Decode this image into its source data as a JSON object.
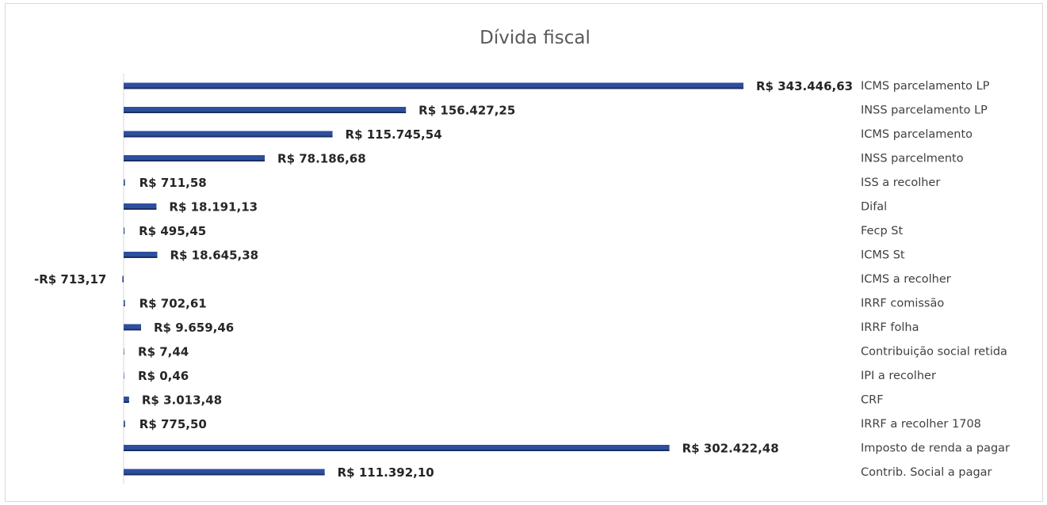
{
  "chart_data": {
    "type": "bar",
    "orientation": "horizontal",
    "title": "Dívida fiscal",
    "xlabel": "",
    "ylabel": "",
    "grid": false,
    "legend": "none",
    "bar_color": "#2e4f9e",
    "bar_shadow_color": "#1b2f63",
    "categories": [
      "ICMS parcelamento LP",
      "INSS parcelamento LP",
      "ICMS parcelamento",
      "INSS parcelmento",
      "ISS a recolher",
      "Difal",
      "Fecp St",
      "ICMS St",
      "ICMS a recolher",
      "IRRF comissão",
      "IRRF folha",
      "Contribuição social retida",
      "IPI a recolher",
      "CRF",
      "IRRF a recolher 1708",
      "Imposto de renda a pagar",
      "Contrib. Social a pagar"
    ],
    "values": [
      343446.63,
      156427.25,
      115745.54,
      78186.68,
      711.58,
      18191.13,
      495.45,
      18645.38,
      -713.17,
      702.61,
      9659.46,
      7.44,
      0.46,
      3013.48,
      775.5,
      302422.48,
      111392.1
    ],
    "data_labels": [
      "R$ 343.446,63",
      "R$ 156.427,25",
      "R$ 115.745,54",
      "R$ 78.186,68",
      "R$ 711,58",
      "R$ 18.191,13",
      "R$ 495,45",
      "R$ 18.645,38",
      "-R$ 713,17",
      "R$ 702,61",
      "R$ 9.659,46",
      "R$ 7,44",
      "R$ 0,46",
      "R$ 3.013,48",
      "R$ 775,50",
      "R$ 302.422,48",
      "R$ 111.392,10"
    ]
  }
}
